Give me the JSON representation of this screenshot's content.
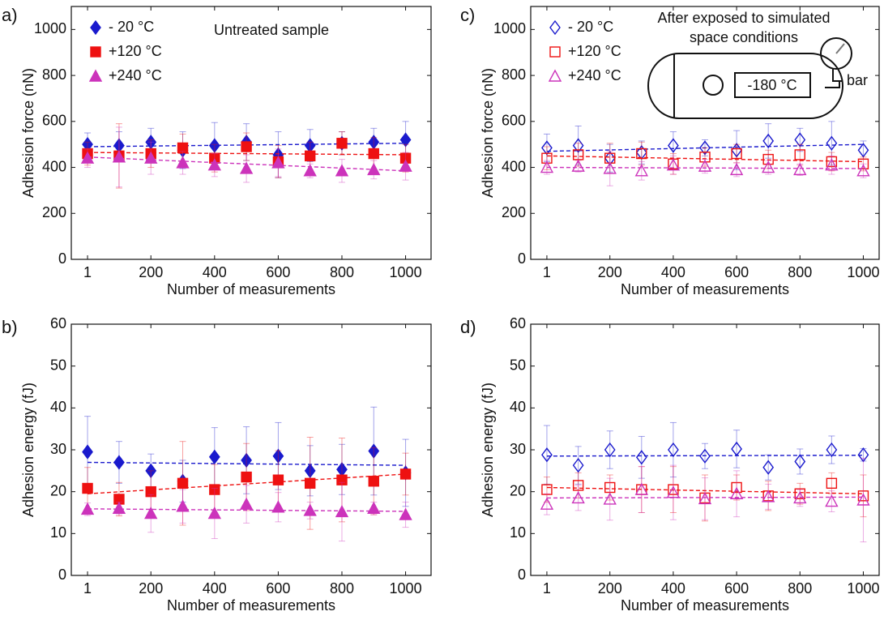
{
  "chart_data": [
    {
      "type": "scatter",
      "panel_label": "a)",
      "annotation": [
        "Untreated sample"
      ],
      "xlabel": "Number of measurements",
      "ylabel": "Adhesion force (nN)",
      "x": [
        1,
        100,
        200,
        300,
        400,
        500,
        600,
        700,
        800,
        900,
        1000
      ],
      "xlim": [
        -50,
        1080
      ],
      "xticks": [
        1,
        200,
        400,
        600,
        800,
        1000
      ],
      "ylim": [
        0,
        1100
      ],
      "yticks": [
        0,
        200,
        400,
        600,
        800,
        1000
      ],
      "legend": "upper left",
      "series": [
        {
          "name": "- 20 °C",
          "color": "#1a1acd",
          "marker": "diamond",
          "filled": true,
          "values": [
            500,
            495,
            510,
            475,
            495,
            510,
            455,
            495,
            505,
            510,
            520
          ],
          "errors": [
            50,
            60,
            60,
            80,
            100,
            80,
            100,
            70,
            50,
            60,
            80
          ],
          "fit": [
            490,
            505
          ]
        },
        {
          "name": "+120 °C",
          "color": "#ee1111",
          "marker": "square",
          "filled": true,
          "values": [
            460,
            450,
            460,
            485,
            440,
            490,
            425,
            450,
            505,
            460,
            440
          ],
          "errors": [
            50,
            140,
            60,
            60,
            60,
            60,
            70,
            60,
            50,
            70,
            60
          ],
          "fit": [
            465,
            455
          ]
        },
        {
          "name": "+240 °C",
          "color": "#cc33bb",
          "marker": "triangle",
          "filled": true,
          "values": [
            440,
            445,
            440,
            420,
            410,
            395,
            420,
            385,
            385,
            390,
            405
          ],
          "errors": [
            40,
            130,
            70,
            50,
            50,
            60,
            60,
            30,
            50,
            40,
            60
          ],
          "fit": [
            445,
            385
          ]
        }
      ]
    },
    {
      "type": "scatter",
      "panel_label": "b)",
      "xlabel": "Number of measurements",
      "ylabel": "Adhesion energy (fJ)",
      "x": [
        1,
        100,
        200,
        300,
        400,
        500,
        600,
        700,
        800,
        900,
        1000
      ],
      "xlim": [
        -50,
        1080
      ],
      "xticks": [
        1,
        200,
        400,
        600,
        800,
        1000
      ],
      "ylim": [
        0,
        60
      ],
      "yticks": [
        0,
        10,
        20,
        30,
        40,
        50,
        60
      ],
      "series": [
        {
          "color": "#1a1acd",
          "marker": "diamond",
          "filled": true,
          "values": [
            29.5,
            27,
            25,
            22.5,
            28.3,
            27.5,
            28.5,
            25,
            25.3,
            29.7,
            24.5
          ],
          "errors": [
            8.5,
            5,
            4,
            5,
            7,
            8,
            8,
            6,
            6,
            10.5,
            8
          ],
          "fit": [
            27,
            26.3
          ]
        },
        {
          "color": "#ee1111",
          "marker": "square",
          "filled": true,
          "values": [
            20.8,
            18.2,
            20,
            22,
            20.5,
            23.5,
            22.8,
            22,
            22.8,
            22.5,
            24.2
          ],
          "errors": [
            5,
            4,
            5,
            10,
            6,
            8,
            7,
            11,
            10,
            8,
            5
          ],
          "fit": [
            19.5,
            24.2
          ]
        },
        {
          "color": "#cc33bb",
          "marker": "triangle",
          "filled": true,
          "values": [
            15.8,
            16,
            14.8,
            16.5,
            14.8,
            17,
            16.3,
            15.5,
            15.2,
            16,
            14.5
          ],
          "errors": [
            1.5,
            1.5,
            4.5,
            4,
            6,
            4.5,
            3.5,
            2,
            7,
            1.5,
            3
          ],
          "fit": [
            15.9,
            15.3
          ]
        }
      ]
    },
    {
      "type": "scatter",
      "panel_label": "c)",
      "annotation": [
        "After exposed to simulated",
        "space conditions"
      ],
      "diagram_labels": [
        "-180 °C",
        "bar"
      ],
      "xlabel": "Number of measurements",
      "ylabel": "Adhesion force (nN)",
      "x": [
        1,
        100,
        200,
        300,
        400,
        500,
        600,
        700,
        800,
        900,
        1000
      ],
      "xlim": [
        -50,
        1050
      ],
      "xticks": [
        1,
        200,
        400,
        600,
        800,
        1000
      ],
      "ylim": [
        0,
        1100
      ],
      "yticks": [
        0,
        200,
        400,
        600,
        800,
        1000
      ],
      "legend": "upper left",
      "series": [
        {
          "name": "- 20 °C",
          "color": "#1a1acd",
          "marker": "diamond",
          "filled": false,
          "values": [
            485,
            495,
            440,
            465,
            495,
            485,
            475,
            515,
            520,
            505,
            475
          ],
          "errors": [
            60,
            85,
            60,
            50,
            60,
            35,
            85,
            75,
            50,
            95,
            40
          ],
          "fit": [
            470,
            500
          ]
        },
        {
          "name": "+120 °C",
          "color": "#ee1111",
          "marker": "square",
          "filled": false,
          "values": [
            440,
            455,
            440,
            460,
            415,
            445,
            460,
            435,
            455,
            425,
            415
          ],
          "errors": [
            50,
            50,
            65,
            50,
            45,
            40,
            40,
            40,
            45,
            40,
            30
          ],
          "fit": [
            450,
            425
          ]
        },
        {
          "name": "+240 °C",
          "color": "#cc33bb",
          "marker": "triangle",
          "filled": false,
          "values": [
            400,
            405,
            395,
            385,
            410,
            405,
            390,
            400,
            390,
            410,
            385
          ],
          "errors": [
            30,
            25,
            75,
            40,
            40,
            30,
            30,
            30,
            25,
            40,
            30
          ],
          "fit": [
            400,
            395
          ]
        }
      ]
    },
    {
      "type": "scatter",
      "panel_label": "d)",
      "xlabel": "Number of measurements",
      "ylabel": "Adhesion energy (fJ)",
      "x": [
        1,
        100,
        200,
        300,
        400,
        500,
        600,
        700,
        800,
        900,
        1000
      ],
      "xlim": [
        -50,
        1050
      ],
      "xticks": [
        1,
        200,
        400,
        600,
        800,
        1000
      ],
      "ylim": [
        0,
        60
      ],
      "yticks": [
        0,
        10,
        20,
        30,
        40,
        50,
        60
      ],
      "series": [
        {
          "color": "#1a1acd",
          "marker": "diamond",
          "filled": false,
          "values": [
            28.8,
            26.3,
            30,
            28.2,
            30,
            28.5,
            30.2,
            25.8,
            27.2,
            30,
            28.8
          ],
          "errors": [
            7,
            4.5,
            4.5,
            5,
            6.5,
            3,
            4.5,
            3,
            3,
            3.3,
            1.5
          ],
          "fit": [
            28.5,
            28.7
          ]
        },
        {
          "color": "#ee1111",
          "marker": "square",
          "filled": false,
          "values": [
            20.5,
            21.5,
            21,
            20.5,
            20.5,
            18.5,
            21,
            19,
            19.5,
            22,
            19
          ],
          "errors": [
            3,
            3,
            3,
            5.5,
            5.5,
            5.5,
            3,
            3.5,
            2.5,
            2.5,
            5
          ],
          "fit": [
            21,
            19.5
          ]
        },
        {
          "color": "#cc33bb",
          "marker": "triangle",
          "filled": false,
          "values": [
            17,
            18.5,
            18.2,
            20.5,
            19.8,
            18.3,
            19.5,
            18.8,
            18.5,
            17.7,
            18
          ],
          "errors": [
            2.5,
            3,
            5,
            5.5,
            6.5,
            5,
            5.5,
            3,
            2,
            2.5,
            10
          ],
          "fit": [
            18.5,
            18.7
          ]
        }
      ]
    }
  ]
}
